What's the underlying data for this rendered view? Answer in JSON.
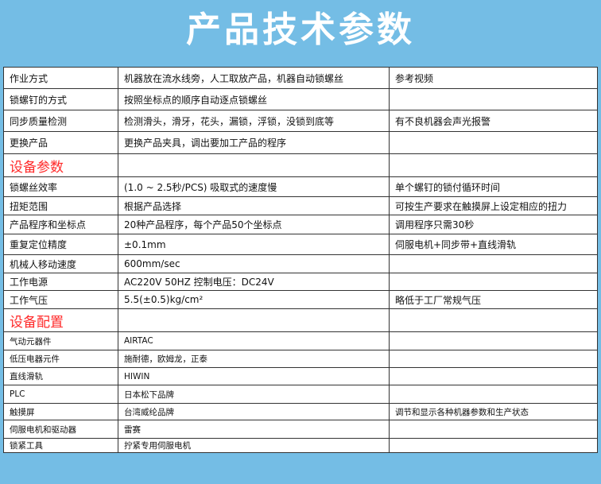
{
  "title": "产品技术参数",
  "colors": {
    "background": "#74bde5",
    "section_heading": "#ff2a2a"
  },
  "rows": [
    {
      "c1": "作业方式",
      "c2": "机器放在流水线旁，人工取放产品，机器自动锁螺丝",
      "c3": "参考视频",
      "h": 27
    },
    {
      "c1": "锁螺钉的方式",
      "c2": "按照坐标点的顺序自动逐点锁螺丝",
      "c3": "",
      "h": 27
    },
    {
      "c1": "同步质量检测",
      "c2": " 检测滑头，滑牙，花头，漏锁，浮锁，没锁到底等",
      "c3": "有不良机器会声光报警",
      "h": 27
    },
    {
      "c1": "更换产品",
      "c2": "更换产品夹具，调出要加工产品的程序",
      "c3": "",
      "h": 28
    },
    {
      "c1": "设备参数",
      "c2": "",
      "c3": "",
      "h": 29,
      "section": true
    },
    {
      "c1": "锁螺丝效率",
      "c2": "(1.0 ~ 2.5秒/PCS)      吸取式的速度慢",
      "c3": "单个螺钉的锁付循环时间",
      "h": 25
    },
    {
      "c1": "扭矩范围",
      "c2": "根据产品选择",
      "c3": "可按生产要求在触摸屏上设定相应的扭力",
      "h": 23
    },
    {
      "c1": "产品程序和坐标点",
      "c2": "20种产品程序，每个产品50个坐标点",
      "c3": "调用程序只需30秒",
      "h": 24
    },
    {
      "c1": "重复定位精度",
      "c2": "±0.1mm",
      "c3": "伺服电机+同步带+直线滑轨",
      "h": 26
    },
    {
      "c1": "机械人移动速度",
      "c2": "600mm/sec",
      "c3": "",
      "h": 23
    },
    {
      "c1": "工作电源",
      "c2": "AC220V  50HZ        控制电压：DC24V",
      "c3": "",
      "h": 22
    },
    {
      "c1": "工作气压",
      "c2": "5.5(±0.5)kg/cm²",
      "c3": "略低于工厂常规气压",
      "h": 23
    },
    {
      "c1": "设备配置",
      "c2": "",
      "c3": "",
      "h": 29,
      "section": true
    },
    {
      "c1": "气动元器件",
      "c2": "AIRTAC",
      "c3": "",
      "h": 23,
      "small": true
    },
    {
      "c1": "低压电器元件",
      "c2": "施耐德，欧姆龙，正泰",
      "c3": "",
      "h": 22,
      "small": true
    },
    {
      "c1": "直线滑轨",
      "c2": "HIWIN",
      "c3": "",
      "h": 22,
      "small": true
    },
    {
      "c1": "PLC",
      "c2": "日本松下品牌",
      "c3": "",
      "h": 23,
      "small": true
    },
    {
      "c1": "触摸屏",
      "c2": "台湾威纶品牌",
      "c3": "调节和显示各种机器参数和生产状态",
      "h": 21,
      "small": true
    },
    {
      "c1": "伺服电机和驱动器",
      "c2": "雷赛",
      "c3": "",
      "h": 23,
      "small": true
    },
    {
      "c1": "锁紧工具",
      "c2": "拧紧专用伺服电机",
      "c3": "",
      "h": 18,
      "small": true
    }
  ]
}
